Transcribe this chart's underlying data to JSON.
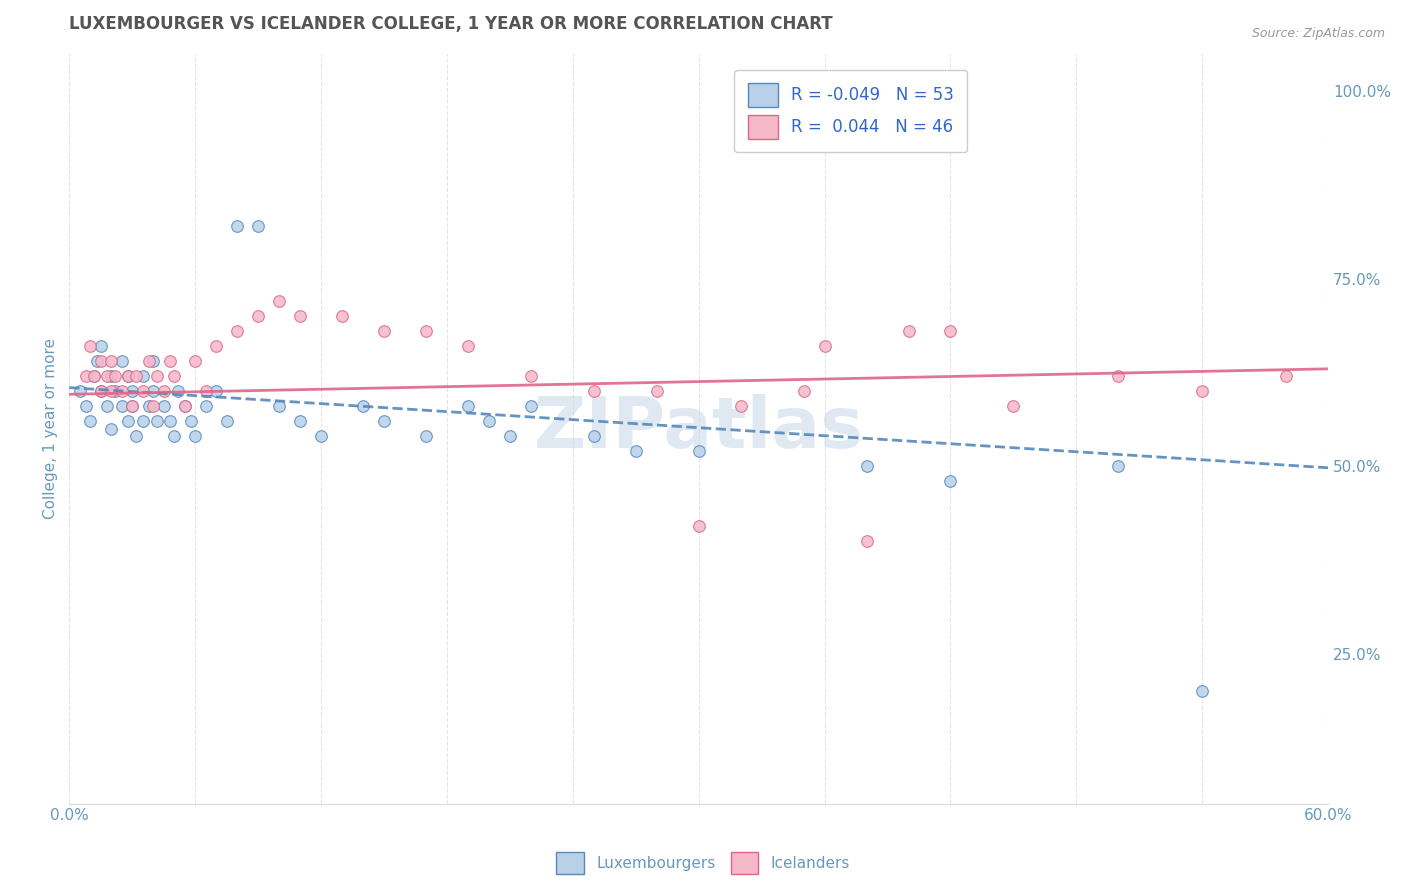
{
  "title": "LUXEMBOURGER VS ICELANDER COLLEGE, 1 YEAR OR MORE CORRELATION CHART",
  "source_text": "Source: ZipAtlas.com",
  "ylabel": "College, 1 year or more",
  "xlim": [
    0.0,
    0.6
  ],
  "ylim": [
    0.05,
    1.05
  ],
  "xtick_positions": [
    0.0,
    0.06,
    0.12,
    0.18,
    0.24,
    0.3,
    0.36,
    0.42,
    0.48,
    0.54,
    0.6
  ],
  "xtick_labels": [
    "0.0%",
    "",
    "",
    "",
    "",
    "",
    "",
    "",
    "",
    "",
    "60.0%"
  ],
  "yticks_right": [
    0.25,
    0.5,
    0.75,
    1.0
  ],
  "ytick_labels_right": [
    "25.0%",
    "50.0%",
    "75.0%",
    "100.0%"
  ],
  "legend_R1": "-0.049",
  "legend_N1": "53",
  "legend_R2": "0.044",
  "legend_N2": "46",
  "blue_fill": "#b8d0e8",
  "pink_fill": "#f5b8c8",
  "blue_edge": "#5588bb",
  "pink_edge": "#dd6688",
  "blue_line": "#5588bb",
  "pink_line": "#dd6688",
  "axis_color": "#6699bb",
  "grid_color": "#dddddd",
  "background_color": "#ffffff",
  "title_color": "#555555",
  "blue_x": [
    0.005,
    0.008,
    0.01,
    0.012,
    0.013,
    0.015,
    0.015,
    0.018,
    0.02,
    0.02,
    0.022,
    0.025,
    0.025,
    0.028,
    0.028,
    0.03,
    0.03,
    0.032,
    0.035,
    0.035,
    0.038,
    0.04,
    0.04,
    0.042,
    0.045,
    0.048,
    0.05,
    0.052,
    0.055,
    0.058,
    0.06,
    0.065,
    0.07,
    0.075,
    0.08,
    0.09,
    0.1,
    0.11,
    0.12,
    0.14,
    0.15,
    0.17,
    0.19,
    0.2,
    0.21,
    0.22,
    0.25,
    0.27,
    0.3,
    0.38,
    0.42,
    0.5,
    0.54
  ],
  "blue_y": [
    0.6,
    0.58,
    0.56,
    0.62,
    0.64,
    0.66,
    0.6,
    0.58,
    0.55,
    0.62,
    0.6,
    0.58,
    0.64,
    0.56,
    0.62,
    0.58,
    0.6,
    0.54,
    0.56,
    0.62,
    0.58,
    0.6,
    0.64,
    0.56,
    0.58,
    0.56,
    0.54,
    0.6,
    0.58,
    0.56,
    0.54,
    0.58,
    0.6,
    0.56,
    0.82,
    0.82,
    0.58,
    0.56,
    0.54,
    0.58,
    0.56,
    0.54,
    0.58,
    0.56,
    0.54,
    0.58,
    0.54,
    0.52,
    0.52,
    0.5,
    0.48,
    0.5,
    0.2
  ],
  "pink_x": [
    0.008,
    0.01,
    0.012,
    0.015,
    0.015,
    0.018,
    0.02,
    0.02,
    0.022,
    0.025,
    0.028,
    0.03,
    0.032,
    0.035,
    0.038,
    0.04,
    0.042,
    0.045,
    0.048,
    0.05,
    0.055,
    0.06,
    0.065,
    0.07,
    0.08,
    0.09,
    0.1,
    0.11,
    0.13,
    0.15,
    0.17,
    0.19,
    0.22,
    0.25,
    0.28,
    0.3,
    0.32,
    0.35,
    0.36,
    0.38,
    0.4,
    0.42,
    0.45,
    0.5,
    0.54,
    0.58
  ],
  "pink_y": [
    0.62,
    0.66,
    0.62,
    0.64,
    0.6,
    0.62,
    0.6,
    0.64,
    0.62,
    0.6,
    0.62,
    0.58,
    0.62,
    0.6,
    0.64,
    0.58,
    0.62,
    0.6,
    0.64,
    0.62,
    0.58,
    0.64,
    0.6,
    0.66,
    0.68,
    0.7,
    0.72,
    0.7,
    0.7,
    0.68,
    0.68,
    0.66,
    0.62,
    0.6,
    0.6,
    0.42,
    0.58,
    0.6,
    0.66,
    0.4,
    0.68,
    0.68,
    0.58,
    0.62,
    0.6,
    0.62
  ],
  "blue_line_x0": 0.0,
  "blue_line_x1": 0.6,
  "blue_line_y0": 0.605,
  "blue_line_y1": 0.498,
  "pink_line_x0": 0.0,
  "pink_line_x1": 0.6,
  "pink_line_y0": 0.596,
  "pink_line_y1": 0.63,
  "watermark_text": "ZIPatlas"
}
